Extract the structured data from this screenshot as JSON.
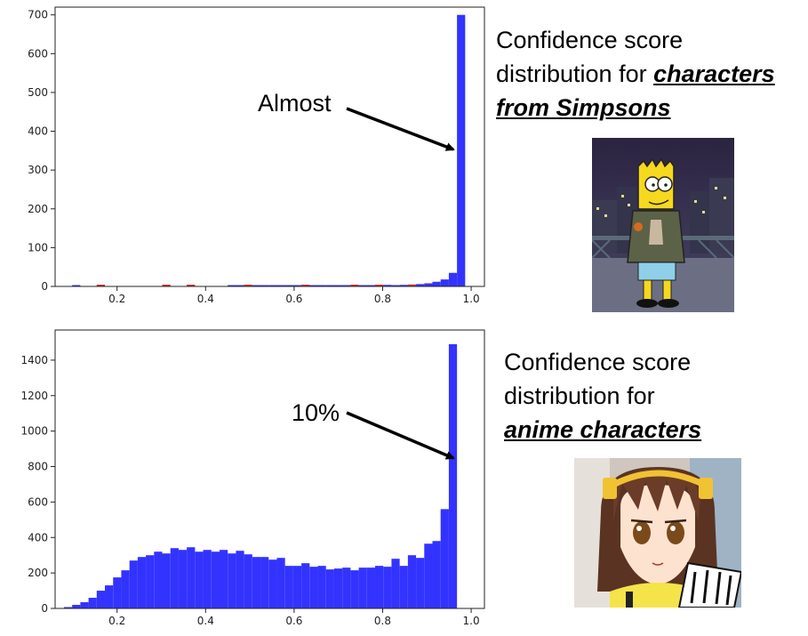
{
  "chart_data": [
    {
      "type": "bar",
      "bin_width": 0.0185,
      "bin_start": 0.08,
      "xlim": [
        0.06,
        1.03
      ],
      "ylim": [
        0,
        720
      ],
      "xticks": [
        0.2,
        0.4,
        0.6,
        0.8,
        1.0
      ],
      "xtick_labels": [
        "0.2",
        "0.4",
        "0.6",
        "0.8",
        "1.0"
      ],
      "yticks": [
        0,
        100,
        200,
        300,
        400,
        500,
        600,
        700
      ],
      "ytick_labels": [
        "0",
        "100",
        "200",
        "300",
        "400",
        "500",
        "600",
        "700"
      ],
      "series": [
        {
          "color": "#3333ff",
          "values": [
            0,
            1,
            0,
            0,
            0,
            0,
            0,
            0,
            0,
            0,
            0,
            0,
            0,
            0,
            0,
            0,
            0,
            0,
            0,
            0,
            1,
            1,
            1,
            1,
            2,
            2,
            1,
            1,
            2,
            2,
            1,
            1,
            1,
            1,
            1,
            1,
            2,
            2,
            3,
            4,
            3,
            4,
            5,
            6,
            8,
            12,
            18,
            35,
            700
          ]
        },
        {
          "color": "#cc3333",
          "values": [
            0,
            0,
            0,
            0,
            1,
            0,
            0,
            0,
            0,
            0,
            0,
            0,
            1,
            0,
            0,
            1,
            0,
            0,
            0,
            0,
            0,
            0,
            1,
            0,
            0,
            0,
            0,
            0,
            0,
            1,
            0,
            0,
            0,
            0,
            0,
            1,
            0,
            0,
            1,
            0,
            0,
            0,
            1,
            0,
            0,
            0,
            0,
            0,
            0
          ]
        }
      ],
      "annotation": "Almost"
    },
    {
      "type": "bar",
      "bin_width": 0.0185,
      "bin_start": 0.08,
      "xlim": [
        0.06,
        1.03
      ],
      "ylim": [
        0,
        1570
      ],
      "xticks": [
        0.2,
        0.4,
        0.6,
        0.8,
        1.0
      ],
      "xtick_labels": [
        "0.2",
        "0.4",
        "0.6",
        "0.8",
        "1.0"
      ],
      "yticks": [
        0,
        200,
        400,
        600,
        800,
        1000,
        1200,
        1400
      ],
      "ytick_labels": [
        "0",
        "200",
        "400",
        "600",
        "800",
        "1000",
        "1200",
        "1400"
      ],
      "series": [
        {
          "color": "#3333ff",
          "values": [
            5,
            20,
            35,
            60,
            100,
            130,
            175,
            215,
            270,
            290,
            300,
            320,
            310,
            340,
            330,
            345,
            320,
            330,
            320,
            330,
            310,
            325,
            305,
            290,
            290,
            275,
            285,
            240,
            240,
            255,
            235,
            240,
            220,
            225,
            230,
            215,
            230,
            230,
            240,
            235,
            280,
            240,
            300,
            285,
            365,
            380,
            560,
            1490
          ]
        }
      ],
      "annotation": "10%"
    }
  ],
  "captions": {
    "top": {
      "line1": "Confidence score",
      "line2_prefix": "distribution for ",
      "line2_em": "characters",
      "line3_em": "from Simpsons"
    },
    "bottom": {
      "line1": "Confidence score",
      "line2": "distribution for",
      "line3_em": "anime characters"
    }
  },
  "colors": {
    "bar": "#3333ff",
    "bar_secondary": "#cc3333"
  }
}
